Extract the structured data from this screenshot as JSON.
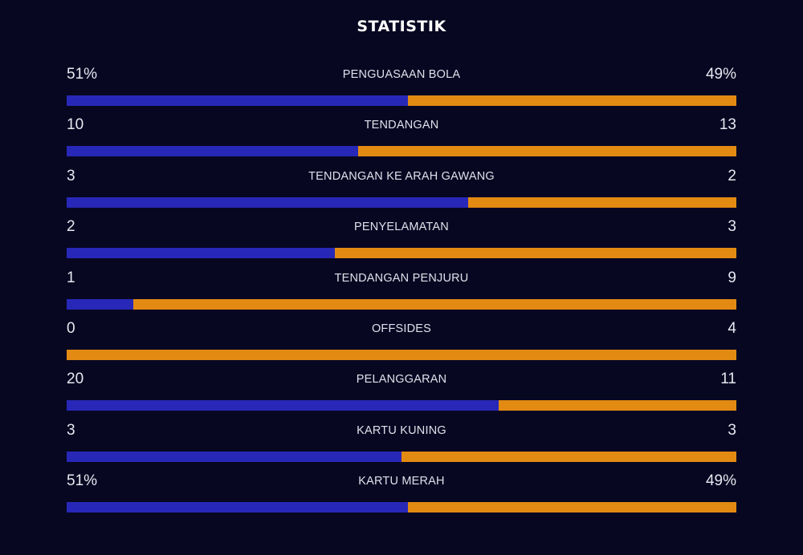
{
  "title": "STATISTIK",
  "colors": {
    "background": "#070722",
    "home": "#2828b8",
    "away": "#e38a12"
  },
  "stats": [
    {
      "label": "PENGUASAAN BOLA",
      "home": "51%",
      "away": "49%",
      "home_share": 0.51
    },
    {
      "label": "TENDANGAN",
      "home": "10",
      "away": "13",
      "home_share": 0.4348
    },
    {
      "label": "TENDANGAN KE ARAH GAWANG",
      "home": "3",
      "away": "2",
      "home_share": 0.6
    },
    {
      "label": "PENYELAMATAN",
      "home": "2",
      "away": "3",
      "home_share": 0.4
    },
    {
      "label": "TENDANGAN PENJURU",
      "home": "1",
      "away": "9",
      "home_share": 0.1
    },
    {
      "label": "OFFSIDES",
      "home": "0",
      "away": "4",
      "home_share": 0.0
    },
    {
      "label": "PELANGGARAN",
      "home": "20",
      "away": "11",
      "home_share": 0.6452
    },
    {
      "label": "KARTU KUNING",
      "home": "3",
      "away": "3",
      "home_share": 0.5
    },
    {
      "label": "KARTU MERAH",
      "home": "51%",
      "away": "49%",
      "home_share": 0.51
    }
  ]
}
